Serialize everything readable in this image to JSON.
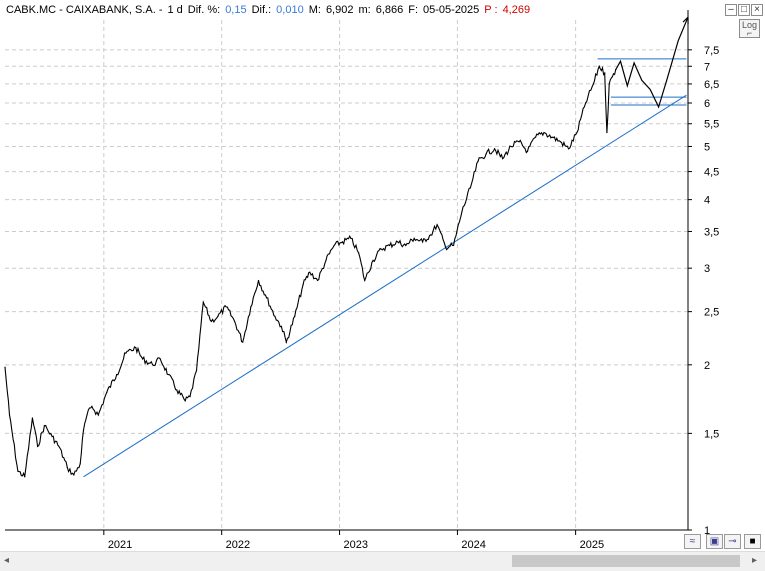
{
  "header": {
    "symbol": "CABK.MC - CAIXABANK, S.A. -",
    "interval": "1 d",
    "dif_pct_label": "Dif. %:",
    "dif_pct_value": "0,15",
    "dif_label": "Dif.:",
    "dif_value": "0,010",
    "max_label": "M:",
    "max_value": "6,902",
    "min_label": "m:",
    "min_value": "6,866",
    "date_label": "F:",
    "date_value": "05-05-2025",
    "p_label": "P :",
    "p_value": "4,269"
  },
  "log_button": "Log",
  "window_controls": {
    "minimize": "–",
    "maximize": "□",
    "close": "×"
  },
  "scrollbar": {
    "left_arrow": "◂",
    "right_arrow": "▸"
  },
  "toolbar": {
    "wave_icon": "≈",
    "save_icon": "▣",
    "pin_icon": "⊸",
    "color_icon": "■"
  },
  "chart_data": {
    "type": "line",
    "scale": "log",
    "ylim": [
      1,
      8.5
    ],
    "y_ticks": [
      1,
      1.5,
      2,
      2.5,
      3,
      3.5,
      4,
      4.5,
      5,
      5.5,
      6,
      6.5,
      7,
      7.5
    ],
    "y_tick_labels": [
      "1",
      "1,5",
      "2",
      "2,5",
      "3",
      "3,5",
      "4",
      "4,5",
      "5",
      "5,5",
      "6",
      "6,5",
      "7",
      "7,5"
    ],
    "x_labels": [
      "2021",
      "2022",
      "2023",
      "2024",
      "2025"
    ],
    "x_range": [
      "2020-03-01",
      "2025-12-15"
    ],
    "grid": true,
    "colors": {
      "price": "#000000",
      "trendline": "#1f6fc9",
      "levels": "#1f6fc9",
      "projection": "#000000",
      "grid": "#cccccc"
    },
    "series": [
      {
        "x": [
          "2020-03-01",
          "2020-03-15",
          "2020-04-10",
          "2020-05-01",
          "2020-05-25",
          "2020-06-10",
          "2020-07-01",
          "2020-07-25",
          "2020-08-15",
          "2020-09-10",
          "2020-09-30",
          "2020-10-20",
          "2020-10-30",
          "2020-11-10",
          "2020-11-25",
          "2020-12-15",
          "2021-01-10",
          "2021-02-10",
          "2021-03-10",
          "2021-04-10",
          "2021-05-01",
          "2021-06-01",
          "2021-06-25",
          "2021-07-20",
          "2021-08-15",
          "2021-09-10",
          "2021-09-25",
          "2021-10-15",
          "2021-11-05",
          "2021-11-30",
          "2021-12-20",
          "2022-01-15",
          "2022-02-10",
          "2022-03-07",
          "2022-04-01",
          "2022-04-25",
          "2022-05-20",
          "2022-06-15",
          "2022-07-05",
          "2022-07-20",
          "2022-08-15",
          "2022-09-10",
          "2022-10-01",
          "2022-10-25",
          "2022-11-20",
          "2022-12-15",
          "2023-01-10",
          "2023-02-05",
          "2023-03-01",
          "2023-03-20",
          "2023-04-15",
          "2023-05-10",
          "2023-06-05",
          "2023-06-30",
          "2023-07-25",
          "2023-08-20",
          "2023-09-15",
          "2023-10-10",
          "2023-10-30",
          "2023-11-25",
          "2023-12-20",
          "2024-01-15",
          "2024-02-10",
          "2024-03-05",
          "2024-03-30",
          "2024-04-25",
          "2024-05-20",
          "2024-06-15",
          "2024-07-10",
          "2024-08-05",
          "2024-08-30",
          "2024-09-25",
          "2024-10-20",
          "2024-11-15",
          "2024-12-10",
          "2025-01-05",
          "2025-02-01",
          "2025-02-25",
          "2025-03-15",
          "2025-04-01",
          "2025-04-08",
          "2025-04-15",
          "2025-04-25",
          "2025-05-05"
        ],
        "values": [
          1.98,
          1.62,
          1.28,
          1.25,
          1.6,
          1.42,
          1.55,
          1.48,
          1.42,
          1.3,
          1.26,
          1.32,
          1.52,
          1.62,
          1.68,
          1.62,
          1.78,
          1.92,
          2.1,
          2.15,
          2.05,
          2.0,
          2.05,
          1.92,
          1.8,
          1.72,
          1.75,
          1.95,
          2.6,
          2.4,
          2.45,
          2.55,
          2.4,
          2.2,
          2.55,
          2.85,
          2.65,
          2.45,
          2.35,
          2.2,
          2.45,
          2.8,
          2.95,
          2.85,
          3.1,
          3.3,
          3.35,
          3.4,
          3.2,
          2.85,
          3.1,
          3.25,
          3.3,
          3.35,
          3.3,
          3.4,
          3.35,
          3.45,
          3.6,
          3.28,
          3.3,
          3.8,
          4.2,
          4.7,
          4.85,
          4.95,
          4.75,
          5.0,
          5.1,
          4.9,
          5.2,
          5.3,
          5.2,
          5.1,
          4.95,
          5.3,
          6.0,
          6.5,
          7.0,
          6.8,
          5.3,
          6.5,
          6.7,
          6.9
        ]
      }
    ],
    "trendline": {
      "start": [
        "2020-10-30",
        1.25
      ],
      "end": [
        "2025-12-10",
        6.2
      ]
    },
    "levels": [
      {
        "value": 7.22,
        "from": "2025-03-10",
        "to": "2025-12-10"
      },
      {
        "value": 6.15,
        "from": "2025-04-20",
        "to": "2025-12-10"
      },
      {
        "value": 5.95,
        "from": "2025-04-20",
        "to": "2025-12-10"
      }
    ],
    "projection": {
      "x": [
        "2025-05-05",
        "2025-05-20",
        "2025-06-10",
        "2025-07-01",
        "2025-07-25",
        "2025-08-20",
        "2025-09-15",
        "2025-10-10",
        "2025-11-15",
        "2025-12-15"
      ],
      "values": [
        6.9,
        7.15,
        6.45,
        7.1,
        6.6,
        6.35,
        5.9,
        6.6,
        7.8,
        8.6
      ]
    }
  }
}
